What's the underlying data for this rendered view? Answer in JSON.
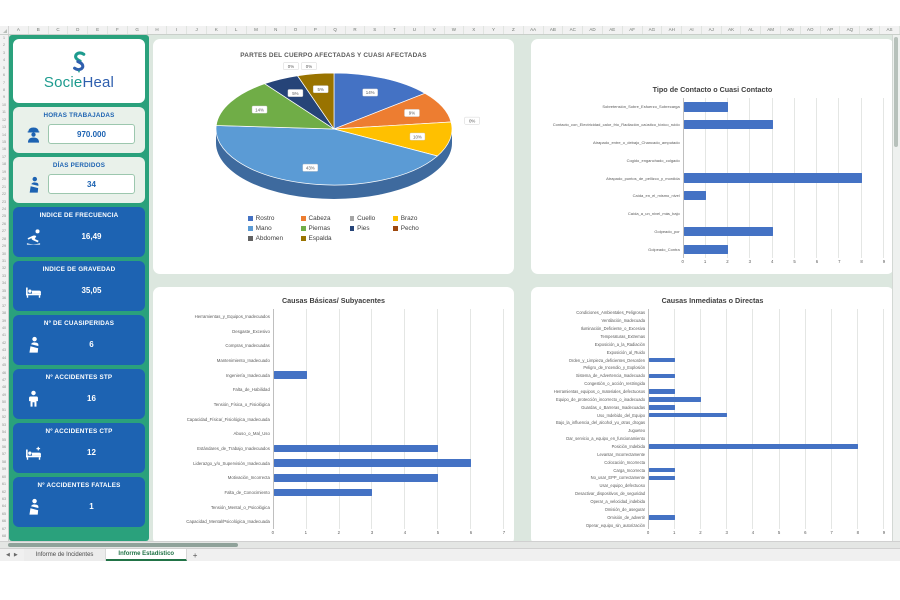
{
  "spreadsheet": {
    "column_headers": [
      "A",
      "B",
      "C",
      "D",
      "E",
      "F",
      "G",
      "H",
      "I",
      "J",
      "K",
      "L",
      "M",
      "N",
      "O",
      "P",
      "Q",
      "R",
      "S",
      "T",
      "U",
      "V",
      "W",
      "X",
      "Y",
      "Z",
      "AA",
      "AB",
      "AC",
      "AD",
      "AE",
      "AF",
      "AG",
      "AH",
      "AI",
      "AJ",
      "AK",
      "AL",
      "AM",
      "AN",
      "AO",
      "AP",
      "AQ",
      "AR",
      "AS"
    ],
    "visible_rows": {
      "first": 1,
      "last": 68
    },
    "tabs": [
      {
        "label": "Informe de Incidentes",
        "active": false
      },
      {
        "label": "Informe Estadístico",
        "active": true
      }
    ],
    "icons": {
      "tab_prev": "◀",
      "tab_next": "▶",
      "add_sheet": "+"
    }
  },
  "sidebar": {
    "logo": {
      "brand_primary": "Socie",
      "brand_secondary": "Heal"
    },
    "cards": [
      {
        "label": "HORAS TRABAJADAS",
        "value": "970.000",
        "icon": "worker-icon",
        "style": "light"
      },
      {
        "label": "DÍAS PERDIDOS",
        "value": "34",
        "icon": "injured-person-icon",
        "style": "light"
      },
      {
        "label": "INDICE DE FRECUENCIA",
        "value": "16,49",
        "icon": "slip-fall-icon",
        "style": "blue"
      },
      {
        "label": "INDICE DE GRAVEDAD",
        "value": "35,05",
        "icon": "hospital-bed-icon",
        "style": "blue"
      },
      {
        "label": "Nº DE CUASIPERIDAS",
        "value": "6",
        "icon": "arm-sling-icon",
        "style": "blue"
      },
      {
        "label": "Nº ACCIDENTES STP",
        "value": "16",
        "icon": "person-icon",
        "style": "blue"
      },
      {
        "label": "Nº ACCIDENTES CTP",
        "value": "12",
        "icon": "patient-bed-icon",
        "style": "blue"
      },
      {
        "label": "Nº ACCIDENTES FATALES",
        "value": "1",
        "icon": "arm-sling-icon",
        "style": "blue"
      }
    ]
  },
  "colors": {
    "accent_green": "#2aa17c",
    "card_blue": "#1d63b2",
    "bar_blue": "#4472c4",
    "sheet_bg": "#dce7df",
    "pie_depth": "#3e6a9e"
  },
  "chart_data": [
    {
      "type": "pie",
      "style": "3d",
      "title": "PARTES DEL CUERPO AFECTADAS Y CUASI AFECTADAS",
      "categories": [
        "Rostro",
        "Cabeza",
        "Cuello",
        "Brazo",
        "Mano",
        "Piernas",
        "Pies",
        "Pecho",
        "Abdomen",
        "Espalda"
      ],
      "values": [
        14,
        9,
        0,
        10,
        43,
        14,
        5,
        0,
        0,
        5
      ],
      "unit": "%",
      "data_labels": [
        "14%",
        "9%",
        "0%",
        "10%",
        "43%",
        "14%",
        "5%",
        "0%",
        "0%",
        "5%"
      ],
      "colors": [
        "#4472C4",
        "#ED7D31",
        "#A5A5A5",
        "#FFC000",
        "#5B9BD5",
        "#70AD47",
        "#264478",
        "#9E480E",
        "#636363",
        "#997300"
      ],
      "legend_position": "bottom"
    },
    {
      "type": "bar",
      "orientation": "horizontal",
      "title": "Tipo de Contacto o Cuasi Contacto",
      "categories": [
        "Sobretensión_Sobre_Esfuerzo_Sobrecarga",
        "Contacto_con_Electricidad_calor_frio_Radiación_caústico_tóxico_ruido",
        "Atrapado_entre_o_debajo_Chancado_amputado",
        "Cogido_enganchado_colgado",
        "Atrapado_puntos_de_pellizco_y_mordida",
        "Caída_en_el_mismo_nivel",
        "Caída_a_un_nivel_más_bajo",
        "Golpeado_por",
        "Golpeado_Contra"
      ],
      "values": [
        2,
        4,
        0,
        0,
        8,
        1,
        0,
        4,
        2
      ],
      "xlim": [
        0,
        9
      ],
      "x_ticks": [
        0,
        1,
        2,
        3,
        4,
        5,
        6,
        7,
        8,
        9
      ],
      "grid": true,
      "legend_position": "none"
    },
    {
      "type": "bar",
      "orientation": "horizontal",
      "title": "Causas Básicas/ Subyacentes",
      "categories": [
        "Herramientas_y_Equipos_Inadecuados",
        "Desgaste_Excesivo",
        "Compras_Inadecuadas",
        "Mantenimiento_Inadecuado",
        "Ingeniería_Inadecuada",
        "Falta_de_Habilidad",
        "Tensión_Física_o_Fisiológica",
        "Capacidad_Física/_Fisiológica_Inadecuada",
        "Abuso_o_Mal_Uso",
        "Estándares_de_Trabajo_Inadecuados",
        "Liderazgo_y/o_Supervisión_Inadecuada",
        "Motivación_Incorrecta",
        "Falta_de_Conocimiento",
        "Tensión_Mental_o_Psicológica",
        "Capacidad_Mental/Psicológica_Inadecuada"
      ],
      "values": [
        0,
        0,
        0,
        0,
        1,
        0,
        0,
        0,
        0,
        5,
        6,
        5,
        3,
        0,
        0
      ],
      "xlim": [
        0,
        7
      ],
      "x_ticks": [
        0,
        1,
        2,
        3,
        4,
        5,
        6,
        7
      ],
      "grid": true,
      "legend_position": "none"
    },
    {
      "type": "bar",
      "orientation": "horizontal",
      "title": "Causas Inmediatas o Directas",
      "categories": [
        "Condiciones_Ambientales_Peligrosas",
        "Ventilación_Inadecuada",
        "Iluminación_Deficiente_o_Excesiva",
        "Temperaturas_Extremas",
        "Exposición_a_la_Radiación",
        "Exposición_al_Ruido",
        "Orden_y_Limpieza_deficientes_Desorden",
        "Peligro_de_Incendio_y_Explosión",
        "Sistema_de_Advertencia_Inadecuado",
        "Congestión_o_acción_restringida",
        "Herramientas_equipos_o_materiales_defectuosos",
        "Equipo_de_protección_incorrecto_o_inadecuado",
        "Guardas_o_Barreras_Inadecuadas",
        "Uso_Indebido_del_Equipo",
        "Bajo_la_influencia_del_alcohol_yu_otras_drogas",
        "Jugueteo",
        "Dar_servicio_a_equipo_en_funcionamiento",
        "Posición_Indebida",
        "Levantar_Incorrectamente",
        "Colocación_Incorrecta",
        "Carga_Incorrecta",
        "No_usar_EPP_correctamente",
        "Usar_equipo_defectuoso",
        "Desactivar_dispositivos_de_seguridad",
        "Operar_a_velocidad_indebida",
        "Omisión_de_asegurar",
        "Omisión_de_advertir",
        "Operar_equipo_sin_autorización"
      ],
      "values": [
        0,
        0,
        0,
        0,
        0,
        0,
        1,
        0,
        1,
        0,
        1,
        2,
        1,
        3,
        0,
        0,
        0,
        8,
        0,
        0,
        1,
        1,
        0,
        0,
        0,
        0,
        1,
        0
      ],
      "xlim": [
        0,
        9
      ],
      "x_ticks": [
        0,
        1,
        2,
        3,
        4,
        5,
        6,
        7,
        8,
        9
      ],
      "grid": true,
      "legend_position": "none"
    }
  ]
}
